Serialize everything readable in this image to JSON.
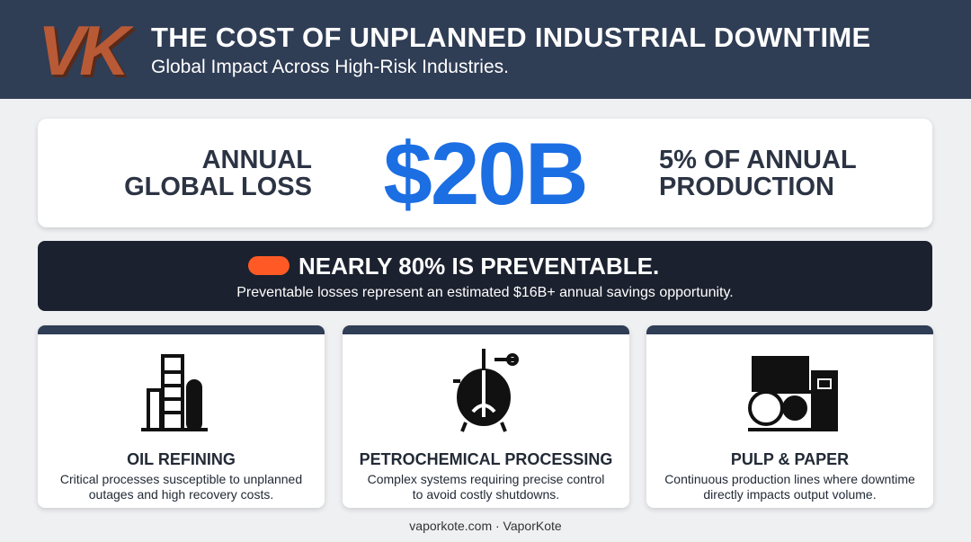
{
  "header": {
    "logo": "VK",
    "title": "THE COST OF UNPLANNED INDUSTRIAL DOWNTIME",
    "subtitle": "Global Impact Across High-Risk Industries."
  },
  "stat": {
    "left_label": [
      "ANNUAL",
      "GLOBAL LOSS"
    ],
    "value": "$20B",
    "right_label": [
      "5% OF ANNUAL",
      "PRODUCTION"
    ]
  },
  "banner": {
    "headline": "NEARLY 80% IS PREVENTABLE.",
    "text": "Preventable losses represent an estimated $16B+ annual savings opportunity."
  },
  "cards": [
    {
      "title": "OIL REFINING",
      "description": [
        "Critical processes susceptible to unplanned",
        "outages and high recovery costs."
      ]
    },
    {
      "title": "PETROCHEMICAL PROCESSING",
      "description": [
        "Complex systems requiring precise control",
        "to avoid costly shutdowns."
      ]
    },
    {
      "title": "PULP & PAPER",
      "description": [
        "Continuous production lines where downtime",
        "directly impacts output volume."
      ]
    }
  ],
  "footer": "vaporkote.com · VaporKote"
}
